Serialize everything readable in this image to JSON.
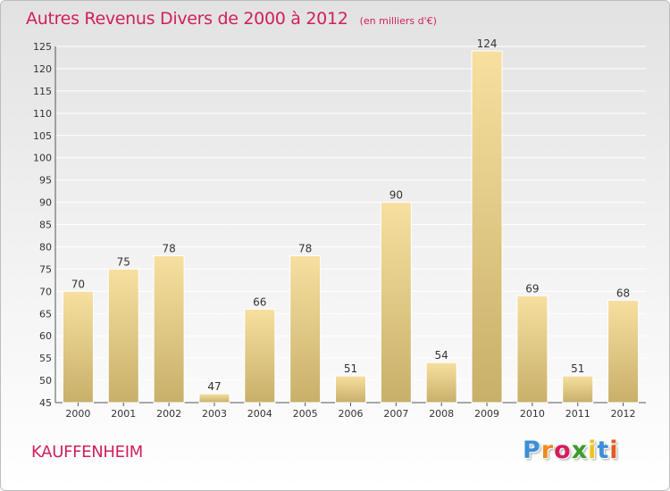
{
  "title": "Autres Revenus Divers de 2000 à 2012",
  "unit": "(en milliers d'€)",
  "location": "KAUFFENHEIM",
  "logo": {
    "letters": [
      "P",
      "r",
      "o",
      "x",
      "i",
      "t",
      "i"
    ],
    "colors": [
      "#3c8fd6",
      "#f08a1c",
      "#d41e5a",
      "#3c9a2b",
      "#f0c21c",
      "#3c8fd6",
      "#e35a1c"
    ]
  },
  "colors": {
    "title": "#d11e5c",
    "bar_light": "#f7dfa0",
    "bar_dark": "#c8b06a"
  },
  "chart_data": {
    "type": "bar",
    "categories": [
      "2000",
      "2001",
      "2002",
      "2003",
      "2004",
      "2005",
      "2006",
      "2007",
      "2008",
      "2009",
      "2010",
      "2011",
      "2012"
    ],
    "values": [
      70,
      75,
      78,
      47,
      66,
      78,
      51,
      90,
      54,
      124,
      69,
      51,
      68
    ],
    "ylim": [
      45,
      125
    ],
    "yticks": [
      45,
      50,
      55,
      60,
      65,
      70,
      75,
      80,
      85,
      90,
      95,
      100,
      105,
      110,
      115,
      120,
      125
    ],
    "grid": true,
    "data_labels": true
  }
}
